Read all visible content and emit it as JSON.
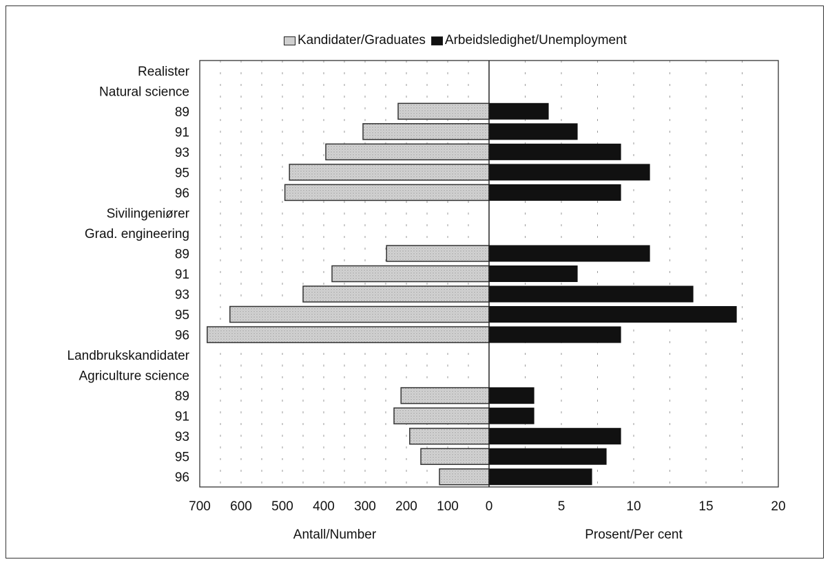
{
  "chart_data": {
    "type": "bar",
    "orientation": "horizontal",
    "layout": "back-to-back",
    "legend": {
      "position": "top",
      "entries": [
        "Kandidater/Graduates",
        "Arbeidsledighet/Unemployment"
      ]
    },
    "left_axis": {
      "label": "Antall/Number",
      "range": [
        0,
        700
      ],
      "ticks": [
        "700",
        "600",
        "500",
        "400",
        "300",
        "200",
        "100",
        "0"
      ],
      "reversed": true
    },
    "right_axis": {
      "label": "Prosent/Per cent",
      "range": [
        0,
        20
      ],
      "ticks": [
        "0",
        "5",
        "10",
        "15",
        "20"
      ]
    },
    "grid": "vertical dashed",
    "colors": {
      "graduates": "#cfcfcf",
      "unemployment": "#111111",
      "frame": "#333333"
    },
    "rows": [
      {
        "label": "Realister",
        "type": "header"
      },
      {
        "label": "Natural science",
        "type": "header"
      },
      {
        "label": "89",
        "graduates": 220,
        "unemployment": 4.1
      },
      {
        "label": "91",
        "graduates": 305,
        "unemployment": 6.1
      },
      {
        "label": "93",
        "graduates": 395,
        "unemployment": 9.1
      },
      {
        "label": "95",
        "graduates": 483,
        "unemployment": 11.1
      },
      {
        "label": "96",
        "graduates": 494,
        "unemployment": 9.1
      },
      {
        "label": "Sivilingeniører",
        "type": "header"
      },
      {
        "label": "Grad. engineering",
        "type": "header"
      },
      {
        "label": "89",
        "graduates": 248,
        "unemployment": 11.1
      },
      {
        "label": "91",
        "graduates": 380,
        "unemployment": 6.1
      },
      {
        "label": "93",
        "graduates": 450,
        "unemployment": 14.1
      },
      {
        "label": "95",
        "graduates": 627,
        "unemployment": 17.1
      },
      {
        "label": "96",
        "graduates": 682,
        "unemployment": 9.1
      },
      {
        "label": "Landbrukskandidater",
        "type": "header"
      },
      {
        "label": "Agriculture science",
        "type": "header"
      },
      {
        "label": "89",
        "graduates": 213,
        "unemployment": 3.1
      },
      {
        "label": "91",
        "graduates": 230,
        "unemployment": 3.1
      },
      {
        "label": "93",
        "graduates": 192,
        "unemployment": 9.1
      },
      {
        "label": "95",
        "graduates": 165,
        "unemployment": 8.1
      },
      {
        "label": "96",
        "graduates": 120,
        "unemployment": 7.1
      }
    ]
  }
}
